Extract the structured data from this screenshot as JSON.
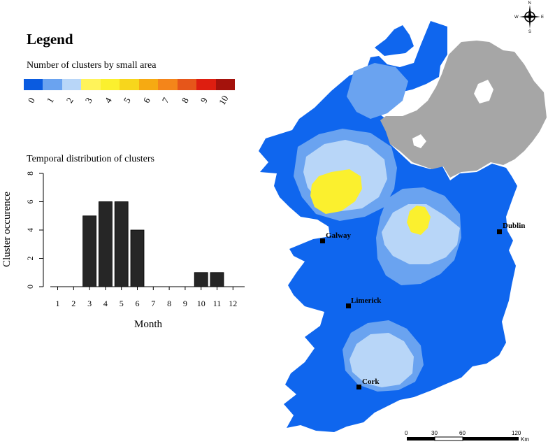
{
  "legend": {
    "title": "Legend",
    "subtitle": "Number of clusters by small area",
    "colors": [
      "#0a5be0",
      "#6aa3f0",
      "#b8d6f8",
      "#fff35a",
      "#fbf02e",
      "#f7d61c",
      "#f6aa12",
      "#f4851a",
      "#e6561a",
      "#de1e10",
      "#a4120c"
    ],
    "labels": [
      "0",
      "1",
      "2",
      "3",
      "4",
      "5",
      "6",
      "7",
      "8",
      "9",
      "10"
    ]
  },
  "chart_title": "Temporal distribution of clusters",
  "chart_data": {
    "type": "bar",
    "categories": [
      "1",
      "2",
      "3",
      "4",
      "5",
      "6",
      "7",
      "8",
      "9",
      "10",
      "11",
      "12"
    ],
    "values": [
      0,
      0,
      5,
      6,
      6,
      4,
      0,
      0,
      0,
      1,
      1,
      0
    ],
    "xlabel": "Month",
    "ylabel": "Cluster occurence",
    "ylim": [
      0,
      8
    ],
    "yticks": [
      "0",
      "2",
      "4",
      "6",
      "8"
    ]
  },
  "map": {
    "cities": [
      "Galway",
      "Dublin",
      "Limerick",
      "Cork"
    ],
    "sea_color": "#ffffff",
    "base_color": "#0f66ee",
    "ni_color": "#a6a6a6"
  },
  "compass": {
    "n": "N",
    "s": "S",
    "e": "E",
    "w": "W"
  },
  "scalebar": {
    "ticks": [
      "0",
      "30",
      "60",
      "120"
    ],
    "unit": "Km"
  }
}
